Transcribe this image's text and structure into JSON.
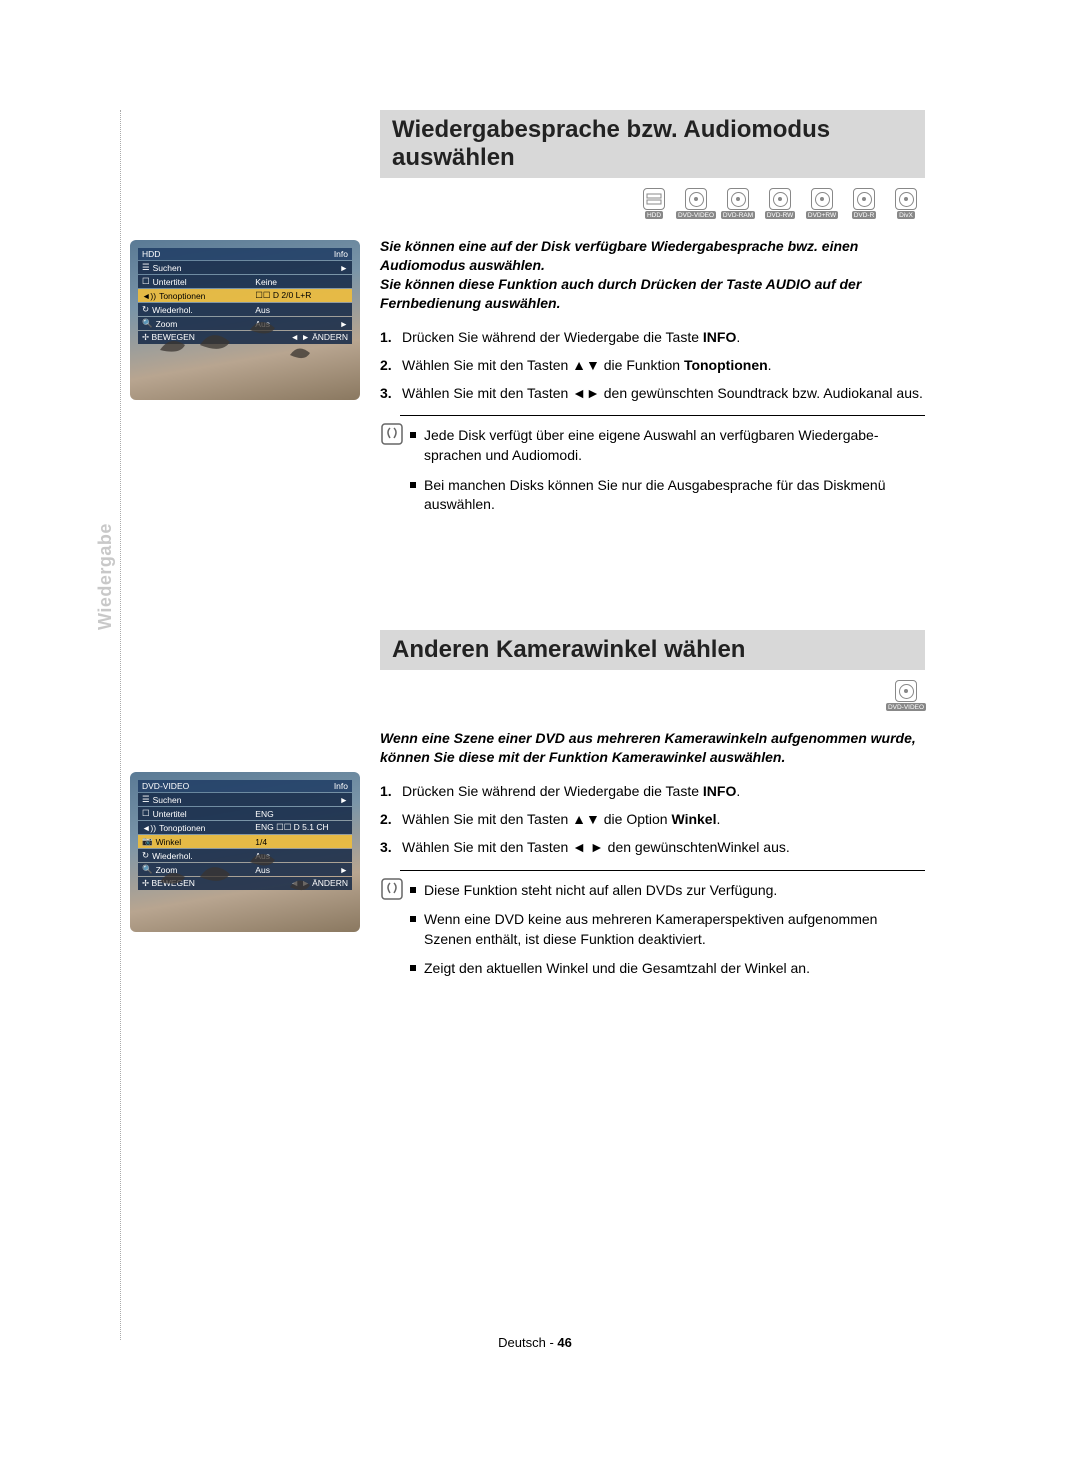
{
  "side_tab": "Wiedergabe",
  "footer": {
    "lang": "Deutsch",
    "sep": " - ",
    "page": "46"
  },
  "screenshot1": {
    "header_left": "HDD",
    "header_right": "Info",
    "rows": [
      {
        "icon": "☰",
        "label": "Suchen",
        "value": "",
        "arrow": "►"
      },
      {
        "icon": "☐",
        "label": "Untertitel",
        "value": "Keine"
      },
      {
        "icon": "◄))",
        "label": "Tonoptionen",
        "value": "☐☐ D 2/0 L+R",
        "hl": true
      },
      {
        "icon": "↻",
        "label": "Wiederhol.",
        "value": "Aus"
      },
      {
        "icon": "🔍",
        "label": "Zoom",
        "value": "Aus",
        "arrow": "►"
      }
    ],
    "footer_left": "✢ BEWEGEN",
    "footer_right": "◄ ► ÄNDERN"
  },
  "screenshot2": {
    "header_left": "DVD-VIDEO",
    "header_right": "Info",
    "rows": [
      {
        "icon": "☰",
        "label": "Suchen",
        "value": "",
        "arrow": "►"
      },
      {
        "icon": "☐",
        "label": "Untertitel",
        "value": "ENG"
      },
      {
        "icon": "◄))",
        "label": "Tonoptionen",
        "value": "ENG ☐☐ D 5.1 CH"
      },
      {
        "icon": "📷",
        "label": "Winkel",
        "value": "1/4",
        "hl": true
      },
      {
        "icon": "↻",
        "label": "Wiederhol.",
        "value": "Aus"
      },
      {
        "icon": "🔍",
        "label": "Zoom",
        "value": "Aus",
        "arrow": "►"
      }
    ],
    "footer_left": "✢ BEWEGEN",
    "footer_right": "◄ ► ÄNDERN"
  },
  "section1": {
    "title": "Wiedergabesprache bzw. Audiomodus auswählen",
    "discs": [
      "HDD",
      "DVD-VIDEO",
      "DVD-RAM",
      "DVD-RW",
      "DVD+RW",
      "DVD-R",
      "DivX"
    ],
    "intro": "Sie können eine auf der Disk verfügbare Wiedergabesprache bwz. einen Audiomodus auswählen.\nSie können diese Funktion auch durch Drücken der Taste AUDIO auf der Fernbedienung auswählen.",
    "steps": [
      {
        "n": "1.",
        "pre": "Drücken Sie während der Wiedergabe die Taste ",
        "b": "INFO",
        "post": "."
      },
      {
        "n": "2.",
        "pre": "Wählen Sie mit den Tasten ▲▼ die Funktion ",
        "b": "Tonoptionen",
        "post": "."
      },
      {
        "n": "3.",
        "pre": "Wählen Sie mit den Tasten ◄► den gewünschten Soundtrack bzw. Audiokanal aus.",
        "b": "",
        "post": ""
      }
    ],
    "notes": [
      "Jede Disk verfügt über eine eigene Auswahl an verfügbaren Wiedergabe-sprachen und Audiomodi.",
      "Bei manchen Disks können Sie nur die Ausgabesprache für das Diskmenü auswählen."
    ]
  },
  "section2": {
    "title": "Anderen Kamerawinkel wählen",
    "discs": [
      "DVD-VIDEO"
    ],
    "intro": "Wenn eine Szene einer DVD aus mehreren Kamerawinkeln aufgenommen wurde, können Sie diese mit der Funktion Kamerawinkel auswählen.",
    "steps": [
      {
        "n": "1.",
        "pre": "Drücken Sie während der Wiedergabe die Taste ",
        "b": "INFO",
        "post": "."
      },
      {
        "n": "2.",
        "pre": "Wählen Sie mit den Tasten ▲▼ die Option ",
        "b": "Winkel",
        "post": "."
      },
      {
        "n": "3.",
        "pre": "Wählen Sie mit den Tasten ◄ ► den gewünschtenWinkel aus.",
        "b": "",
        "post": ""
      }
    ],
    "notes": [
      "Diese Funktion steht nicht auf allen DVDs zur Verfügung.",
      "Wenn eine DVD keine aus mehreren Kameraperspektiven aufgenommen Szenen enthält, ist diese Funktion deaktiviert.",
      "Zeigt den aktuellen Winkel und die Gesamtzahl der Winkel an."
    ]
  }
}
